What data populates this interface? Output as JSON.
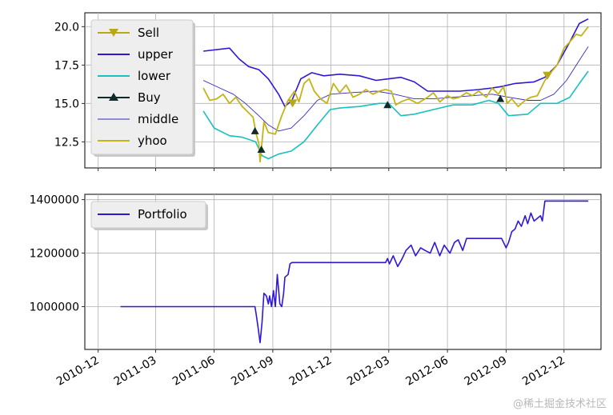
{
  "watermark": "@稀土掘金技术社区",
  "chart_data": [
    {
      "type": "line",
      "grid": true,
      "legend_position": "top-left",
      "x_ticks": [
        "2010-12",
        "2011-03",
        "2011-06",
        "2011-09",
        "2011-12",
        "2012-03",
        "2012-06",
        "2012-09",
        "2012-12"
      ],
      "y_ticks": [
        "12.5",
        "15.0",
        "17.5",
        "20.0"
      ],
      "ylim": [
        10.8,
        20.9
      ],
      "legend": [
        "Sell",
        "upper",
        "lower",
        "Buy",
        "middle",
        "yhoo"
      ],
      "series": [
        {
          "name": "upper",
          "color": "#2e18d6",
          "points": [
            [
              "2011-05-15",
              18.4
            ],
            [
              "2011-06-25",
              18.6
            ],
            [
              "2011-07-10",
              17.9
            ],
            [
              "2011-07-25",
              17.4
            ],
            [
              "2011-08-10",
              17.2
            ],
            [
              "2011-08-25",
              16.6
            ],
            [
              "2011-09-10",
              15.6
            ],
            [
              "2011-09-20",
              14.8
            ],
            [
              "2011-10-01",
              15.2
            ],
            [
              "2011-10-15",
              16.6
            ],
            [
              "2011-11-01",
              17.0
            ],
            [
              "2011-11-20",
              16.8
            ],
            [
              "2011-12-15",
              16.9
            ],
            [
              "2012-01-15",
              16.8
            ],
            [
              "2012-02-10",
              16.5
            ],
            [
              "2012-03-01",
              16.6
            ],
            [
              "2012-03-20",
              16.7
            ],
            [
              "2012-04-10",
              16.4
            ],
            [
              "2012-05-01",
              15.8
            ],
            [
              "2012-05-20",
              15.8
            ],
            [
              "2012-06-20",
              15.8
            ],
            [
              "2012-07-20",
              15.9
            ],
            [
              "2012-08-10",
              16.0
            ],
            [
              "2012-08-25",
              16.1
            ],
            [
              "2012-09-15",
              16.3
            ],
            [
              "2012-10-15",
              16.4
            ],
            [
              "2012-11-01",
              16.7
            ],
            [
              "2012-11-20",
              17.5
            ],
            [
              "2012-12-10",
              19.0
            ],
            [
              "2012-12-25",
              20.2
            ],
            [
              "2013-01-08",
              20.5
            ]
          ]
        },
        {
          "name": "lower",
          "color": "#18c0c0",
          "points": [
            [
              "2011-05-15",
              14.5
            ],
            [
              "2011-06-01",
              13.4
            ],
            [
              "2011-06-25",
              12.9
            ],
            [
              "2011-07-15",
              12.8
            ],
            [
              "2011-08-05",
              12.5
            ],
            [
              "2011-08-15",
              11.6
            ],
            [
              "2011-08-25",
              11.4
            ],
            [
              "2011-09-10",
              11.7
            ],
            [
              "2011-09-30",
              11.9
            ],
            [
              "2011-10-20",
              12.5
            ],
            [
              "2011-11-10",
              13.6
            ],
            [
              "2011-11-30",
              14.6
            ],
            [
              "2011-12-15",
              14.7
            ],
            [
              "2012-01-15",
              14.8
            ],
            [
              "2012-02-15",
              15.0
            ],
            [
              "2012-03-01",
              15.0
            ],
            [
              "2012-03-20",
              14.2
            ],
            [
              "2012-04-10",
              14.3
            ],
            [
              "2012-05-10",
              14.6
            ],
            [
              "2012-06-10",
              14.9
            ],
            [
              "2012-07-10",
              14.9
            ],
            [
              "2012-08-05",
              15.2
            ],
            [
              "2012-08-20",
              15.0
            ],
            [
              "2012-09-05",
              14.2
            ],
            [
              "2012-10-05",
              14.3
            ],
            [
              "2012-10-25",
              15.0
            ],
            [
              "2012-11-20",
              15.0
            ],
            [
              "2012-12-10",
              15.4
            ],
            [
              "2012-12-25",
              16.3
            ],
            [
              "2013-01-08",
              17.1
            ]
          ]
        },
        {
          "name": "middle",
          "color": "#3428c8",
          "points": [
            [
              "2011-05-15",
              16.5
            ],
            [
              "2011-06-10",
              16.0
            ],
            [
              "2011-07-01",
              15.6
            ],
            [
              "2011-07-20",
              15.0
            ],
            [
              "2011-08-10",
              14.2
            ],
            [
              "2011-08-25",
              13.6
            ],
            [
              "2011-09-10",
              13.2
            ],
            [
              "2011-09-30",
              13.4
            ],
            [
              "2011-10-20",
              14.2
            ],
            [
              "2011-11-10",
              15.2
            ],
            [
              "2011-12-01",
              15.6
            ],
            [
              "2012-01-01",
              15.7
            ],
            [
              "2012-02-10",
              15.8
            ],
            [
              "2012-03-10",
              15.6
            ],
            [
              "2012-04-10",
              15.3
            ],
            [
              "2012-05-10",
              15.3
            ],
            [
              "2012-06-10",
              15.4
            ],
            [
              "2012-07-10",
              15.5
            ],
            [
              "2012-08-10",
              15.6
            ],
            [
              "2012-09-05",
              15.4
            ],
            [
              "2012-10-05",
              15.2
            ],
            [
              "2012-10-25",
              15.2
            ],
            [
              "2012-11-15",
              15.6
            ],
            [
              "2012-12-05",
              16.5
            ],
            [
              "2012-12-25",
              17.8
            ],
            [
              "2013-01-08",
              18.7
            ]
          ]
        },
        {
          "name": "yhoo",
          "color": "#c4b418",
          "points": [
            [
              "2011-05-15",
              16.0
            ],
            [
              "2011-05-25",
              15.2
            ],
            [
              "2011-06-05",
              15.3
            ],
            [
              "2011-06-15",
              15.6
            ],
            [
              "2011-06-25",
              15.0
            ],
            [
              "2011-07-05",
              15.4
            ],
            [
              "2011-07-15",
              14.8
            ],
            [
              "2011-07-25",
              14.4
            ],
            [
              "2011-08-01",
              14.1
            ],
            [
              "2011-08-06",
              13.0
            ],
            [
              "2011-08-10",
              12.4
            ],
            [
              "2011-08-12",
              11.2
            ],
            [
              "2011-08-18",
              13.8
            ],
            [
              "2011-08-25",
              13.1
            ],
            [
              "2011-09-05",
              13.0
            ],
            [
              "2011-09-15",
              14.2
            ],
            [
              "2011-09-25",
              15.2
            ],
            [
              "2011-10-05",
              15.8
            ],
            [
              "2011-10-12",
              15.1
            ],
            [
              "2011-10-20",
              16.3
            ],
            [
              "2011-10-28",
              16.6
            ],
            [
              "2011-11-05",
              15.8
            ],
            [
              "2011-11-15",
              15.3
            ],
            [
              "2011-11-25",
              15.0
            ],
            [
              "2011-12-05",
              16.3
            ],
            [
              "2011-12-15",
              15.7
            ],
            [
              "2011-12-25",
              16.2
            ],
            [
              "2012-01-05",
              15.4
            ],
            [
              "2012-01-15",
              15.6
            ],
            [
              "2012-01-25",
              15.9
            ],
            [
              "2012-02-05",
              15.6
            ],
            [
              "2012-02-15",
              15.8
            ],
            [
              "2012-02-25",
              15.9
            ],
            [
              "2012-03-05",
              15.8
            ],
            [
              "2012-03-12",
              14.9
            ],
            [
              "2012-03-20",
              15.1
            ],
            [
              "2012-04-01",
              15.3
            ],
            [
              "2012-04-15",
              15.0
            ],
            [
              "2012-05-01",
              15.4
            ],
            [
              "2012-05-10",
              15.7
            ],
            [
              "2012-05-20",
              15.1
            ],
            [
              "2012-06-01",
              15.5
            ],
            [
              "2012-06-10",
              15.3
            ],
            [
              "2012-06-20",
              15.4
            ],
            [
              "2012-07-01",
              15.7
            ],
            [
              "2012-07-10",
              15.5
            ],
            [
              "2012-07-20",
              15.8
            ],
            [
              "2012-08-01",
              15.4
            ],
            [
              "2012-08-10",
              16.0
            ],
            [
              "2012-08-20",
              15.6
            ],
            [
              "2012-08-28",
              16.1
            ],
            [
              "2012-09-03",
              15.0
            ],
            [
              "2012-09-10",
              15.3
            ],
            [
              "2012-09-20",
              14.8
            ],
            [
              "2012-10-01",
              15.2
            ],
            [
              "2012-10-10",
              15.4
            ],
            [
              "2012-10-20",
              15.5
            ],
            [
              "2012-11-01",
              16.5
            ],
            [
              "2012-11-10",
              17.0
            ],
            [
              "2012-11-20",
              17.5
            ],
            [
              "2012-12-01",
              18.6
            ],
            [
              "2012-12-10",
              19.0
            ],
            [
              "2012-12-20",
              19.5
            ],
            [
              "2012-12-28",
              19.4
            ],
            [
              "2013-01-08",
              20.0
            ]
          ]
        }
      ],
      "markers": {
        "Buy": {
          "color": "#0e2a2a",
          "points": [
            [
              "2011-08-04",
              13.2
            ],
            [
              "2011-08-14",
              12.0
            ],
            [
              "2012-02-28",
              14.9
            ],
            [
              "2012-08-23",
              15.3
            ]
          ]
        },
        "Sell": {
          "color": "#b8a818",
          "points": [
            [
              "2011-10-02",
              15.0
            ],
            [
              "2012-11-05",
              16.8
            ]
          ]
        }
      }
    },
    {
      "type": "line",
      "grid": true,
      "legend_position": "top-left",
      "x_ticks": [
        "2010-12",
        "2011-03",
        "2011-06",
        "2011-09",
        "2011-12",
        "2012-03",
        "2012-06",
        "2012-09",
        "2012-12"
      ],
      "y_ticks": [
        "1000000",
        "1200000",
        "1400000"
      ],
      "ylim": [
        840000,
        1420000
      ],
      "legend": [
        "Portfolio"
      ],
      "series": [
        {
          "name": "Portfolio",
          "color": "#2e18d6",
          "points": [
            [
              "2011-01-05",
              1000000
            ],
            [
              "2011-08-04",
              1000000
            ],
            [
              "2011-08-06",
              970000
            ],
            [
              "2011-08-09",
              920000
            ],
            [
              "2011-08-12",
              865000
            ],
            [
              "2011-08-15",
              940000
            ],
            [
              "2011-08-18",
              1050000
            ],
            [
              "2011-08-22",
              1040000
            ],
            [
              "2011-08-25",
              1010000
            ],
            [
              "2011-08-27",
              1040000
            ],
            [
              "2011-08-30",
              1000000
            ],
            [
              "2011-09-02",
              1060000
            ],
            [
              "2011-09-05",
              1000000
            ],
            [
              "2011-09-08",
              1120000
            ],
            [
              "2011-09-12",
              1010000
            ],
            [
              "2011-09-15",
              1000000
            ],
            [
              "2011-09-18",
              1050000
            ],
            [
              "2011-09-20",
              1110000
            ],
            [
              "2011-09-25",
              1120000
            ],
            [
              "2011-09-28",
              1160000
            ],
            [
              "2011-10-01",
              1165000
            ],
            [
              "2012-02-25",
              1165000
            ],
            [
              "2012-02-28",
              1180000
            ],
            [
              "2012-03-02",
              1160000
            ],
            [
              "2012-03-08",
              1190000
            ],
            [
              "2012-03-15",
              1150000
            ],
            [
              "2012-03-22",
              1180000
            ],
            [
              "2012-03-28",
              1210000
            ],
            [
              "2012-04-05",
              1230000
            ],
            [
              "2012-04-12",
              1190000
            ],
            [
              "2012-04-20",
              1220000
            ],
            [
              "2012-04-27",
              1210000
            ],
            [
              "2012-05-05",
              1200000
            ],
            [
              "2012-05-12",
              1240000
            ],
            [
              "2012-05-20",
              1190000
            ],
            [
              "2012-05-27",
              1230000
            ],
            [
              "2012-06-05",
              1200000
            ],
            [
              "2012-06-12",
              1240000
            ],
            [
              "2012-06-18",
              1250000
            ],
            [
              "2012-06-25",
              1210000
            ],
            [
              "2012-07-01",
              1255000
            ],
            [
              "2012-08-25",
              1255000
            ],
            [
              "2012-09-01",
              1220000
            ],
            [
              "2012-09-05",
              1240000
            ],
            [
              "2012-09-10",
              1280000
            ],
            [
              "2012-09-15",
              1290000
            ],
            [
              "2012-09-20",
              1320000
            ],
            [
              "2012-09-25",
              1300000
            ],
            [
              "2012-10-01",
              1340000
            ],
            [
              "2012-10-05",
              1310000
            ],
            [
              "2012-10-10",
              1350000
            ],
            [
              "2012-10-15",
              1320000
            ],
            [
              "2012-10-20",
              1330000
            ],
            [
              "2012-10-25",
              1340000
            ],
            [
              "2012-10-28",
              1320000
            ],
            [
              "2012-11-01",
              1395000
            ],
            [
              "2013-01-08",
              1395000
            ]
          ]
        }
      ]
    }
  ]
}
